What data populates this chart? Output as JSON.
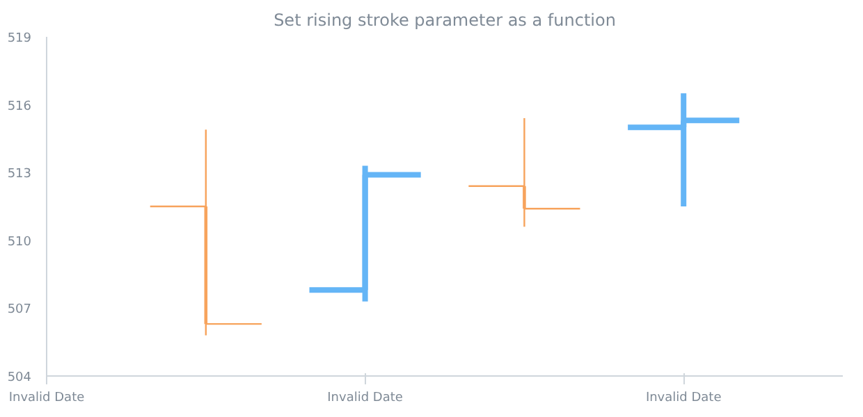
{
  "chart_data": {
    "type": "candlestick",
    "title": "Set rising stroke parameter as a function",
    "categories": [
      null,
      "Invalid Date",
      null,
      "Invalid Date"
    ],
    "annotations": [
      "Invalid Date"
    ],
    "ohlc": [
      [
        511.5,
        514.9,
        505.8,
        506.3
      ],
      [
        507.8,
        513.3,
        507.3,
        512.9
      ],
      [
        512.4,
        515.4,
        510.6,
        511.4
      ],
      [
        515.0,
        516.5,
        511.5,
        515.3
      ]
    ],
    "colors": [
      "#f7a35c",
      "#64b5f6",
      "#f7a35c",
      "#64b5f6"
    ],
    "ylim": [
      504,
      519
    ],
    "yticks": [
      504,
      507,
      510,
      513,
      516,
      519
    ],
    "grid": false
  }
}
